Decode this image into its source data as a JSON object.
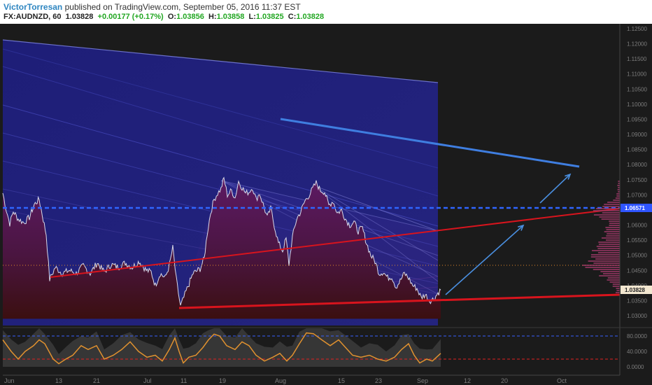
{
  "header": {
    "author": "VictorTorresan",
    "published_text": " published on TradingView.com, September 05, 2016 11:37 EST",
    "symbol": "FX:AUDNZD, 60",
    "last": "1.03828",
    "change": "+0.00177 (+0.17%)",
    "open_label": "O:",
    "open": "1.03856",
    "high_label": "H:",
    "high": "1.03858",
    "low_label": "L:",
    "low": "1.03825",
    "close_label": "C:",
    "close": "1.03828"
  },
  "colors": {
    "background": "#1b1b1b",
    "price_fill_top": "#5a1a5e",
    "price_fill_bottom": "#3b0f10",
    "price_line": "#d9d9e8",
    "channel": "#1a1a6e",
    "red_line": "#d8141d",
    "blue_line": "#3f7ee0",
    "blue_dashed": "#2f65ff",
    "orange_dotted": "#e08a2a",
    "oscillator": "#e0912f"
  },
  "chart_data": [
    {
      "type": "line",
      "name": "price",
      "title": "FX:AUDNZD, 60",
      "x_labels": [
        "Jun",
        "13",
        "21",
        "Jul",
        "11",
        "19",
        "Aug",
        "15",
        "23",
        "Sep",
        "12",
        "20",
        "Oct"
      ],
      "y_ticks": [
        "1.12500",
        "1.12000",
        "1.11500",
        "1.11000",
        "1.10500",
        "1.10000",
        "1.09500",
        "1.09000",
        "1.08500",
        "1.08000",
        "1.07500",
        "1.07000",
        "1.06500",
        "1.06000",
        "1.05500",
        "1.05000",
        "1.04500",
        "1.04000",
        "1.03500",
        "1.03000"
      ],
      "ylim": [
        1.029,
        1.126
      ],
      "price_label": "1.03828",
      "level_label": "1.06571",
      "keypoints": [
        {
          "x": 0,
          "y": 1.0706
        },
        {
          "x": 5,
          "y": 1.065
        },
        {
          "x": 10,
          "y": 1.0605
        },
        {
          "x": 15,
          "y": 1.0645
        },
        {
          "x": 22,
          "y": 1.062
        },
        {
          "x": 30,
          "y": 1.0608
        },
        {
          "x": 38,
          "y": 1.0625
        },
        {
          "x": 45,
          "y": 1.0668
        },
        {
          "x": 52,
          "y": 1.0685
        },
        {
          "x": 55,
          "y": 1.065
        },
        {
          "x": 62,
          "y": 1.057
        },
        {
          "x": 67,
          "y": 1.042
        },
        {
          "x": 75,
          "y": 1.046
        },
        {
          "x": 85,
          "y": 1.044
        },
        {
          "x": 95,
          "y": 1.045
        },
        {
          "x": 105,
          "y": 1.044
        },
        {
          "x": 115,
          "y": 1.0465
        },
        {
          "x": 125,
          "y": 1.044
        },
        {
          "x": 135,
          "y": 1.0475
        },
        {
          "x": 145,
          "y": 1.0445
        },
        {
          "x": 155,
          "y": 1.047
        },
        {
          "x": 165,
          "y": 1.046
        },
        {
          "x": 175,
          "y": 1.0475
        },
        {
          "x": 185,
          "y": 1.046
        },
        {
          "x": 195,
          "y": 1.048
        },
        {
          "x": 205,
          "y": 1.045
        },
        {
          "x": 212,
          "y": 1.0445
        },
        {
          "x": 218,
          "y": 1.04
        },
        {
          "x": 225,
          "y": 1.044
        },
        {
          "x": 232,
          "y": 1.0425
        },
        {
          "x": 238,
          "y": 1.0465
        },
        {
          "x": 243,
          "y": 1.0525
        },
        {
          "x": 248,
          "y": 1.042
        },
        {
          "x": 254,
          "y": 1.033
        },
        {
          "x": 262,
          "y": 1.038
        },
        {
          "x": 272,
          "y": 1.044
        },
        {
          "x": 282,
          "y": 1.0455
        },
        {
          "x": 288,
          "y": 1.049
        },
        {
          "x": 292,
          "y": 1.057
        },
        {
          "x": 297,
          "y": 1.064
        },
        {
          "x": 302,
          "y": 1.0685
        },
        {
          "x": 307,
          "y": 1.0705
        },
        {
          "x": 312,
          "y": 1.072
        },
        {
          "x": 316,
          "y": 1.0755
        },
        {
          "x": 321,
          "y": 1.07
        },
        {
          "x": 327,
          "y": 1.0715
        },
        {
          "x": 332,
          "y": 1.069
        },
        {
          "x": 337,
          "y": 1.0745
        },
        {
          "x": 342,
          "y": 1.0725
        },
        {
          "x": 347,
          "y": 1.0705
        },
        {
          "x": 352,
          "y": 1.071
        },
        {
          "x": 357,
          "y": 1.0725
        },
        {
          "x": 362,
          "y": 1.0685
        },
        {
          "x": 367,
          "y": 1.0705
        },
        {
          "x": 372,
          "y": 1.067
        },
        {
          "x": 378,
          "y": 1.0625
        },
        {
          "x": 383,
          "y": 1.0655
        },
        {
          "x": 388,
          "y": 1.06
        },
        {
          "x": 394,
          "y": 1.054
        },
        {
          "x": 400,
          "y": 1.0515
        },
        {
          "x": 405,
          "y": 1.0555
        },
        {
          "x": 409,
          "y": 1.047
        },
        {
          "x": 414,
          "y": 1.056
        },
        {
          "x": 420,
          "y": 1.062
        },
        {
          "x": 426,
          "y": 1.0645
        },
        {
          "x": 432,
          "y": 1.068
        },
        {
          "x": 438,
          "y": 1.07
        },
        {
          "x": 443,
          "y": 1.072
        },
        {
          "x": 448,
          "y": 1.074
        },
        {
          "x": 454,
          "y": 1.0715
        },
        {
          "x": 460,
          "y": 1.071
        },
        {
          "x": 466,
          "y": 1.0665
        },
        {
          "x": 472,
          "y": 1.068
        },
        {
          "x": 478,
          "y": 1.064
        },
        {
          "x": 484,
          "y": 1.065
        },
        {
          "x": 490,
          "y": 1.062
        },
        {
          "x": 496,
          "y": 1.06
        },
        {
          "x": 502,
          "y": 1.061
        },
        {
          "x": 508,
          "y": 1.058
        },
        {
          "x": 514,
          "y": 1.059
        },
        {
          "x": 520,
          "y": 1.054
        },
        {
          "x": 526,
          "y": 1.05
        },
        {
          "x": 532,
          "y": 1.048
        },
        {
          "x": 538,
          "y": 1.044
        },
        {
          "x": 544,
          "y": 1.0445
        },
        {
          "x": 550,
          "y": 1.0425
        },
        {
          "x": 556,
          "y": 1.043
        },
        {
          "x": 562,
          "y": 1.0395
        },
        {
          "x": 568,
          "y": 1.0415
        },
        {
          "x": 574,
          "y": 1.044
        },
        {
          "x": 580,
          "y": 1.0425
        },
        {
          "x": 586,
          "y": 1.04
        },
        {
          "x": 592,
          "y": 1.039
        },
        {
          "x": 598,
          "y": 1.036
        },
        {
          "x": 604,
          "y": 1.037
        },
        {
          "x": 610,
          "y": 1.035
        },
        {
          "x": 616,
          "y": 1.0355
        },
        {
          "x": 622,
          "y": 1.0375
        },
        {
          "x": 626,
          "y": 1.0385
        }
      ]
    },
    {
      "type": "line",
      "name": "oscillator",
      "y_ticks": [
        "80.0000",
        "40.0000",
        "0.0000"
      ],
      "ylim": [
        -5,
        100
      ],
      "levels": [
        80,
        20
      ],
      "keypoints": [
        {
          "x": 0,
          "y": 70
        },
        {
          "x": 12,
          "y": 40
        },
        {
          "x": 22,
          "y": 20
        },
        {
          "x": 32,
          "y": 40
        },
        {
          "x": 44,
          "y": 55
        },
        {
          "x": 52,
          "y": 70
        },
        {
          "x": 60,
          "y": 60
        },
        {
          "x": 66,
          "y": 40
        },
        {
          "x": 72,
          "y": 20
        },
        {
          "x": 80,
          "y": 8
        },
        {
          "x": 90,
          "y": 20
        },
        {
          "x": 100,
          "y": 30
        },
        {
          "x": 112,
          "y": 55
        },
        {
          "x": 122,
          "y": 45
        },
        {
          "x": 134,
          "y": 55
        },
        {
          "x": 145,
          "y": 20
        },
        {
          "x": 158,
          "y": 30
        },
        {
          "x": 170,
          "y": 45
        },
        {
          "x": 182,
          "y": 65
        },
        {
          "x": 194,
          "y": 40
        },
        {
          "x": 206,
          "y": 25
        },
        {
          "x": 218,
          "y": 30
        },
        {
          "x": 228,
          "y": 15
        },
        {
          "x": 238,
          "y": 45
        },
        {
          "x": 246,
          "y": 75
        },
        {
          "x": 252,
          "y": 40
        },
        {
          "x": 258,
          "y": 10
        },
        {
          "x": 266,
          "y": 25
        },
        {
          "x": 276,
          "y": 30
        },
        {
          "x": 286,
          "y": 50
        },
        {
          "x": 294,
          "y": 70
        },
        {
          "x": 302,
          "y": 85
        },
        {
          "x": 310,
          "y": 80
        },
        {
          "x": 320,
          "y": 55
        },
        {
          "x": 332,
          "y": 45
        },
        {
          "x": 342,
          "y": 65
        },
        {
          "x": 352,
          "y": 55
        },
        {
          "x": 362,
          "y": 30
        },
        {
          "x": 374,
          "y": 15
        },
        {
          "x": 386,
          "y": 25
        },
        {
          "x": 396,
          "y": 35
        },
        {
          "x": 406,
          "y": 15
        },
        {
          "x": 414,
          "y": 30
        },
        {
          "x": 424,
          "y": 60
        },
        {
          "x": 434,
          "y": 88
        },
        {
          "x": 444,
          "y": 86
        },
        {
          "x": 456,
          "y": 70
        },
        {
          "x": 468,
          "y": 55
        },
        {
          "x": 480,
          "y": 70
        },
        {
          "x": 490,
          "y": 50
        },
        {
          "x": 500,
          "y": 30
        },
        {
          "x": 512,
          "y": 25
        },
        {
          "x": 524,
          "y": 30
        },
        {
          "x": 536,
          "y": 20
        },
        {
          "x": 548,
          "y": 15
        },
        {
          "x": 560,
          "y": 25
        },
        {
          "x": 570,
          "y": 45
        },
        {
          "x": 580,
          "y": 60
        },
        {
          "x": 588,
          "y": 30
        },
        {
          "x": 596,
          "y": 10
        },
        {
          "x": 606,
          "y": 20
        },
        {
          "x": 614,
          "y": 15
        },
        {
          "x": 626,
          "y": 35
        }
      ]
    }
  ]
}
